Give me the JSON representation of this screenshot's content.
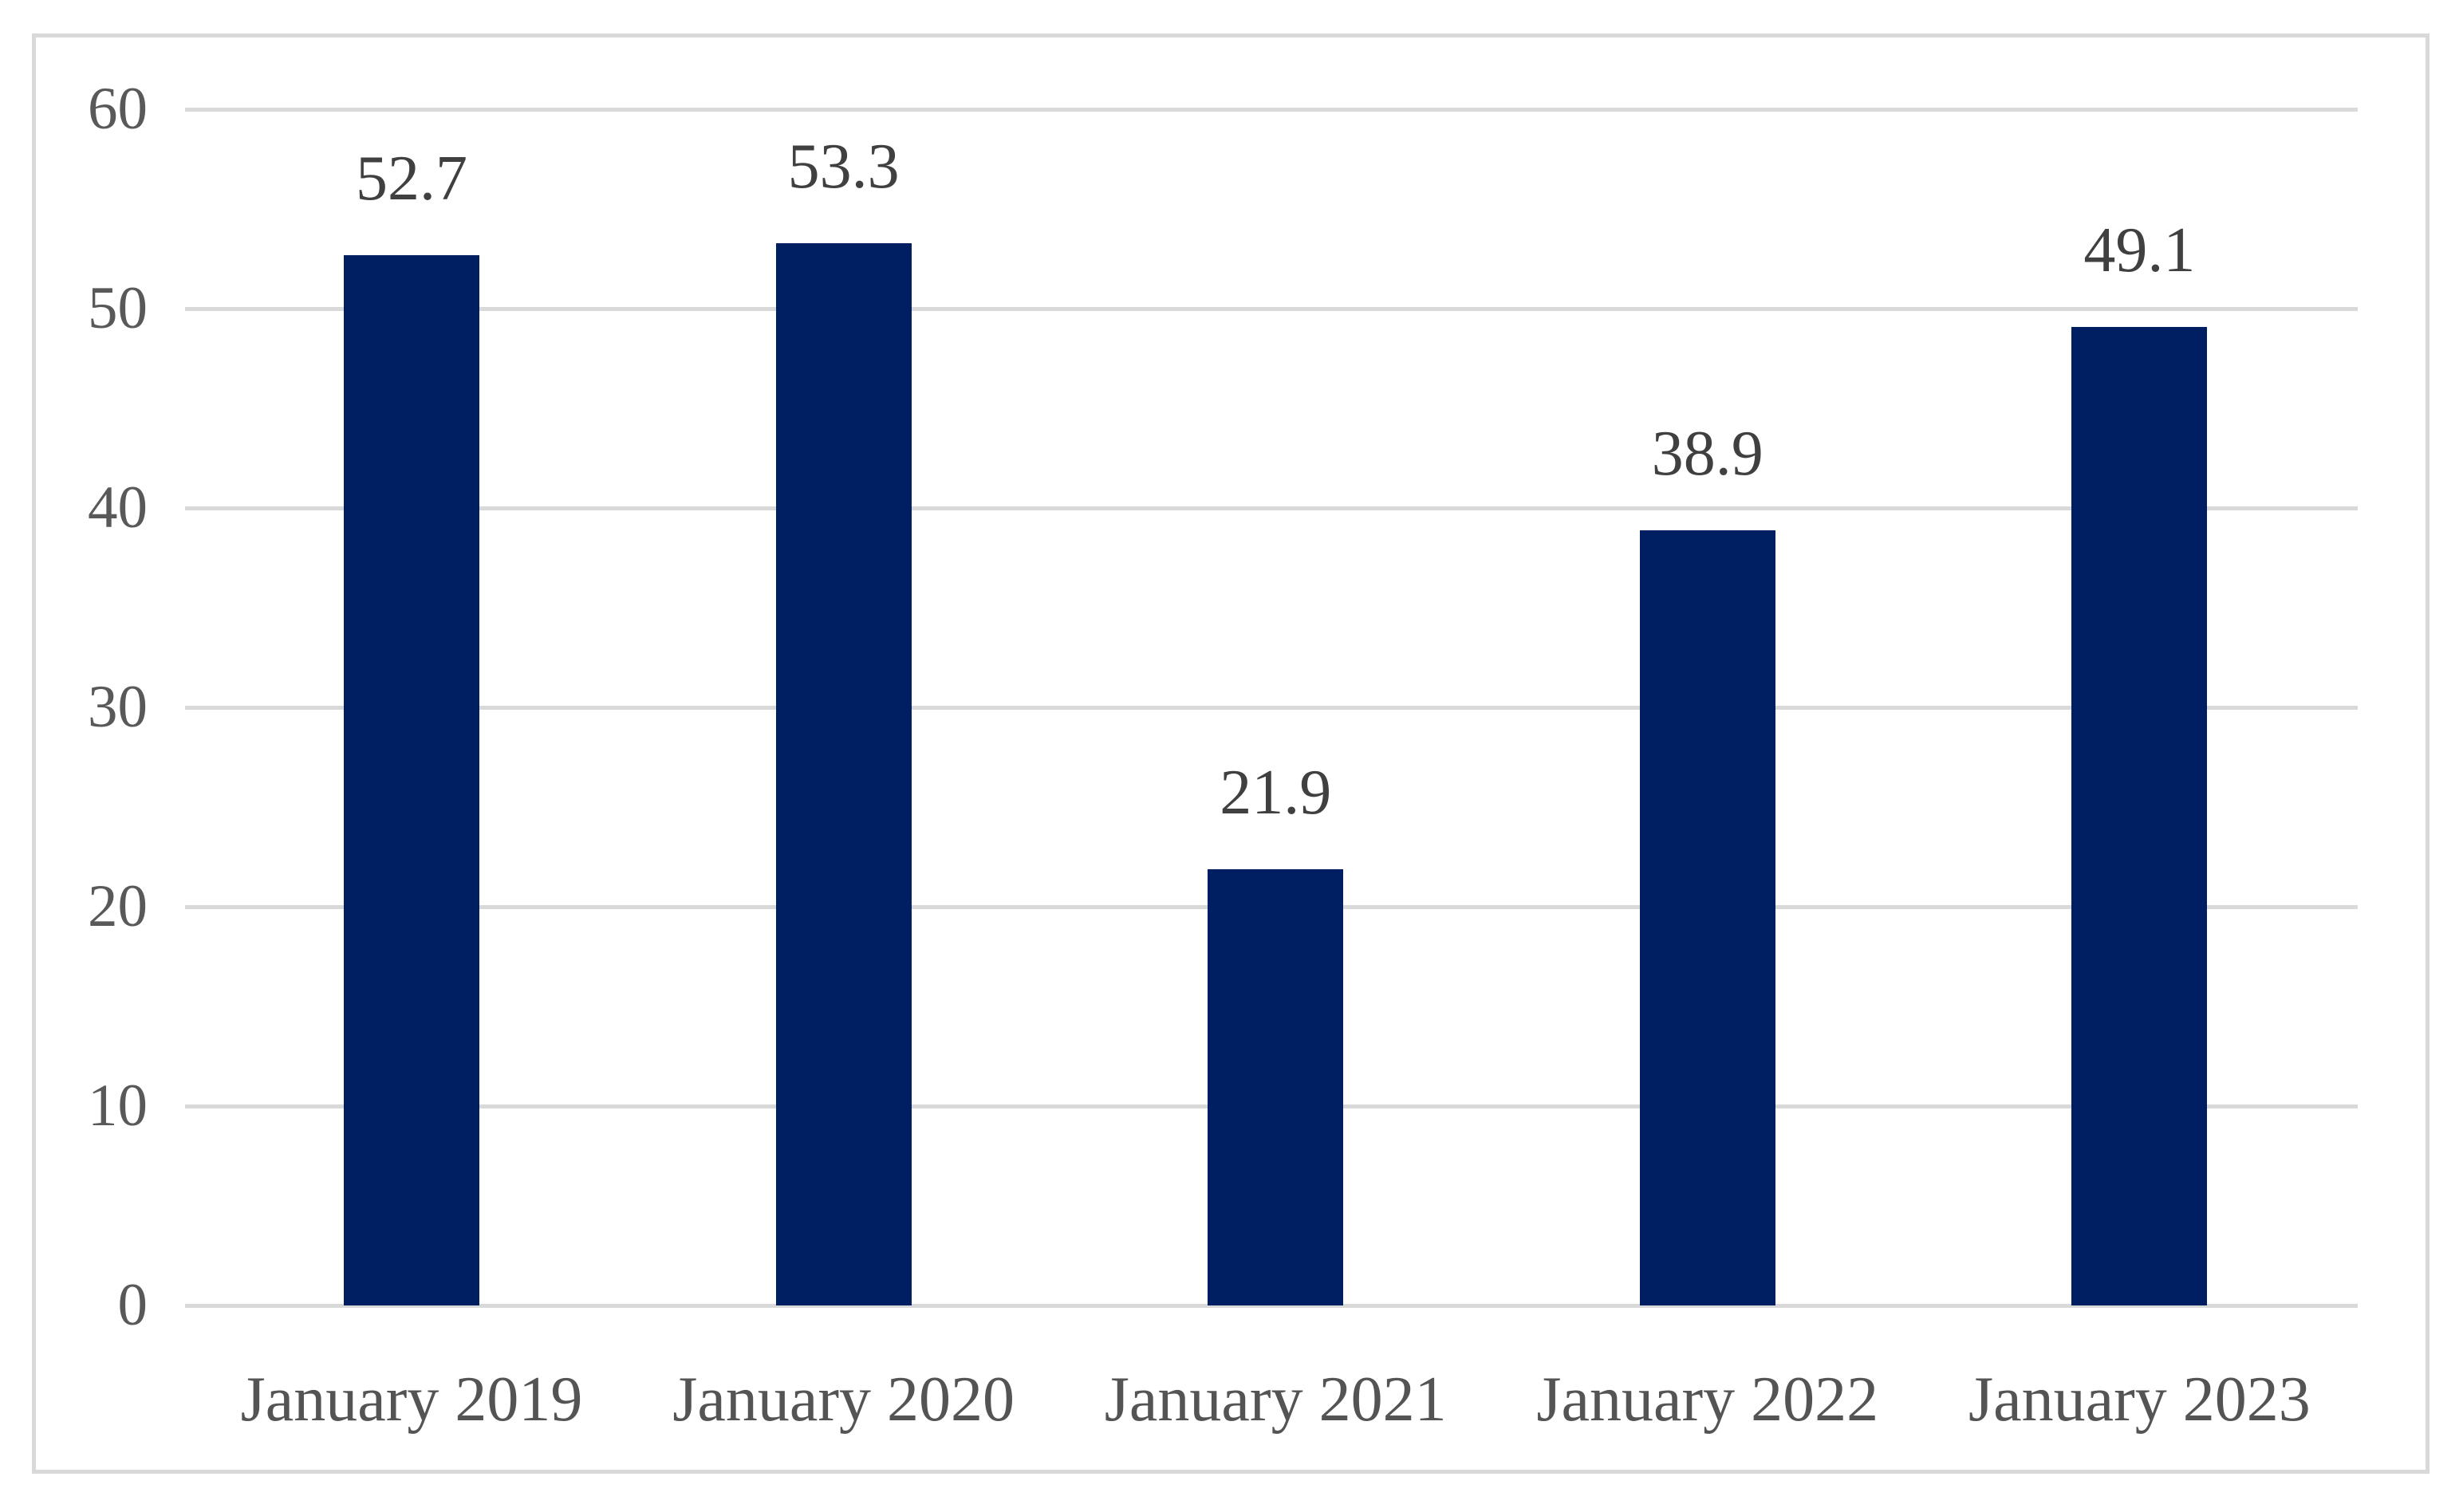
{
  "chart_data": {
    "type": "bar",
    "title": "",
    "xlabel": "",
    "ylabel": "",
    "categories": [
      "January 2019",
      "January 2020",
      "January 2021",
      "January 2022",
      "January 2023"
    ],
    "values": [
      52.7,
      53.3,
      21.9,
      38.9,
      49.1
    ],
    "data_labels": [
      "52.7",
      "53.3",
      "21.9",
      "38.9",
      "49.1"
    ],
    "ylim": [
      0,
      60
    ],
    "ytick_step": 10,
    "yticks": [
      "0",
      "10",
      "20",
      "30",
      "40",
      "50",
      "60"
    ],
    "grid": "horizontal-only",
    "legend": "none",
    "colors": {
      "bar": "#001f63",
      "gridline": "#d9d9d9",
      "frame_border": "#d9d9d9",
      "y_tick_label": "#595959",
      "x_tick_label": "#545454",
      "data_label": "#404040",
      "background": "#ffffff"
    }
  }
}
